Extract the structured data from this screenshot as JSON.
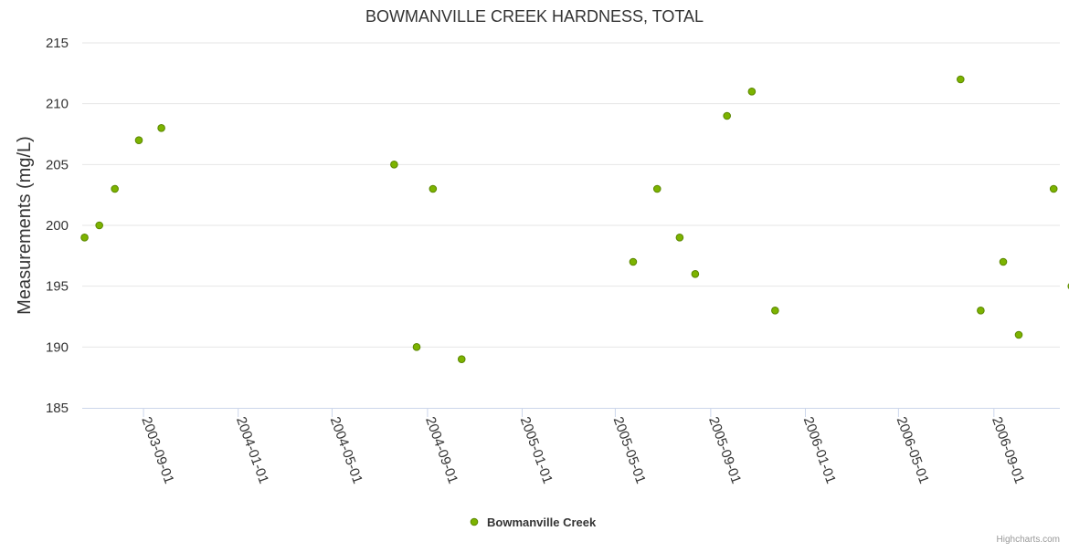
{
  "chart_data": {
    "type": "scatter",
    "title": "BOWMANVILLE CREEK HARDNESS, TOTAL",
    "xlabel": "",
    "ylabel": "Measurements (mg/L)",
    "ylim": [
      185,
      215
    ],
    "yticks": [
      185,
      190,
      195,
      200,
      205,
      210,
      215
    ],
    "xlim": [
      "2003-06-14",
      "2006-11-25"
    ],
    "xticks": [
      "2003-09-01",
      "2004-01-01",
      "2004-05-01",
      "2004-09-01",
      "2005-01-01",
      "2005-05-01",
      "2005-09-01",
      "2006-01-01",
      "2006-05-01",
      "2006-09-01"
    ],
    "grid": "horizontal",
    "legend_position": "bottom-center",
    "series": [
      {
        "name": "Bowmanville Creek",
        "color": "#7cb300",
        "points": [
          {
            "x": "2003-06-17",
            "y": 199
          },
          {
            "x": "2003-07-06",
            "y": 200
          },
          {
            "x": "2003-07-26",
            "y": 203
          },
          {
            "x": "2003-08-26",
            "y": 207
          },
          {
            "x": "2003-09-24",
            "y": 208
          },
          {
            "x": "2004-07-20",
            "y": 205
          },
          {
            "x": "2004-08-18",
            "y": 190
          },
          {
            "x": "2004-09-08",
            "y": 203
          },
          {
            "x": "2004-10-15",
            "y": 189
          },
          {
            "x": "2005-05-24",
            "y": 197
          },
          {
            "x": "2005-06-24",
            "y": 203
          },
          {
            "x": "2005-07-23",
            "y": 199
          },
          {
            "x": "2005-08-12",
            "y": 196
          },
          {
            "x": "2005-09-22",
            "y": 209
          },
          {
            "x": "2005-10-24",
            "y": 211
          },
          {
            "x": "2005-11-23",
            "y": 193
          },
          {
            "x": "2006-07-20",
            "y": 212
          },
          {
            "x": "2006-08-15",
            "y": 193
          },
          {
            "x": "2006-09-13",
            "y": 197
          },
          {
            "x": "2006-10-03",
            "y": 191
          },
          {
            "x": "2006-11-17",
            "y": 203
          },
          {
            "x": "2006-12-10",
            "y": 195
          }
        ]
      }
    ]
  },
  "credits": "Highcharts.com"
}
